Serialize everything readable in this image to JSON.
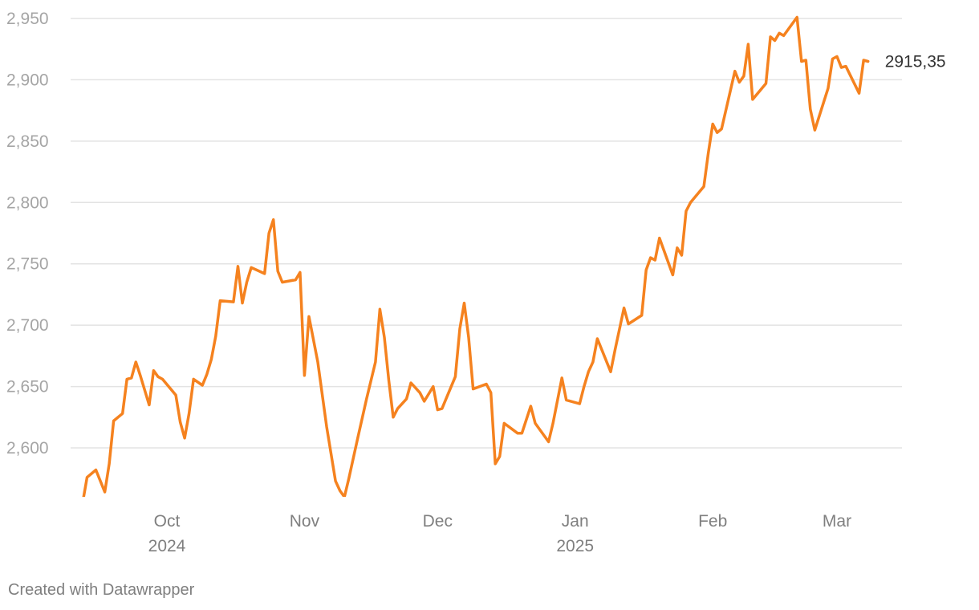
{
  "chart_data": {
    "type": "line",
    "title": "",
    "xlabel": "",
    "ylabel": "",
    "ylim": [
      2560,
      2950
    ],
    "xlim": [
      "2024-09-11",
      "2025-03-12"
    ],
    "grid": true,
    "legend": "none",
    "y_ticks": [
      {
        "value": 2600,
        "label": "2,600"
      },
      {
        "value": 2650,
        "label": "2,650"
      },
      {
        "value": 2700,
        "label": "2,700"
      },
      {
        "value": 2750,
        "label": "2,750"
      },
      {
        "value": 2800,
        "label": "2,800"
      },
      {
        "value": 2850,
        "label": "2,850"
      },
      {
        "value": 2900,
        "label": "2,900"
      },
      {
        "value": 2950,
        "label": "2,950"
      }
    ],
    "x_ticks": [
      {
        "date": "2024-10-01",
        "label": "Oct",
        "sublabel": "2024"
      },
      {
        "date": "2024-11-01",
        "label": "Nov",
        "sublabel": ""
      },
      {
        "date": "2024-12-01",
        "label": "Dec",
        "sublabel": ""
      },
      {
        "date": "2025-01-01",
        "label": "Jan",
        "sublabel": "2025"
      },
      {
        "date": "2025-02-01",
        "label": "Feb",
        "sublabel": ""
      },
      {
        "date": "2025-03-01",
        "label": "Mar",
        "sublabel": ""
      }
    ],
    "series": [
      {
        "color": "#f5821f",
        "end_label": "2915,35",
        "points": [
          [
            "2024-09-11",
            2517
          ],
          [
            "2024-09-12",
            2555
          ],
          [
            "2024-09-13",
            2576
          ],
          [
            "2024-09-15",
            2582
          ],
          [
            "2024-09-17",
            2564
          ],
          [
            "2024-09-18",
            2587
          ],
          [
            "2024-09-19",
            2622
          ],
          [
            "2024-09-21",
            2628
          ],
          [
            "2024-09-22",
            2656
          ],
          [
            "2024-09-23",
            2657
          ],
          [
            "2024-09-24",
            2670
          ],
          [
            "2024-09-25",
            2659
          ],
          [
            "2024-09-27",
            2635
          ],
          [
            "2024-09-28",
            2663
          ],
          [
            "2024-09-29",
            2658
          ],
          [
            "2024-09-30",
            2656
          ],
          [
            "2024-10-03",
            2643
          ],
          [
            "2024-10-04",
            2621
          ],
          [
            "2024-10-05",
            2608
          ],
          [
            "2024-10-06",
            2628
          ],
          [
            "2024-10-07",
            2656
          ],
          [
            "2024-10-09",
            2651
          ],
          [
            "2024-10-10",
            2660
          ],
          [
            "2024-10-11",
            2672
          ],
          [
            "2024-10-12",
            2691
          ],
          [
            "2024-10-13",
            2720
          ],
          [
            "2024-10-16",
            2719
          ],
          [
            "2024-10-17",
            2748
          ],
          [
            "2024-10-18",
            2718
          ],
          [
            "2024-10-19",
            2735
          ],
          [
            "2024-10-20",
            2747
          ],
          [
            "2024-10-23",
            2742
          ],
          [
            "2024-10-24",
            2775
          ],
          [
            "2024-10-25",
            2786
          ],
          [
            "2024-10-26",
            2744
          ],
          [
            "2024-10-27",
            2735
          ],
          [
            "2024-10-30",
            2737
          ],
          [
            "2024-10-31",
            2743
          ],
          [
            "2024-11-01",
            2659
          ],
          [
            "2024-11-02",
            2707
          ],
          [
            "2024-11-04",
            2670
          ],
          [
            "2024-11-06",
            2617
          ],
          [
            "2024-11-08",
            2573
          ],
          [
            "2024-11-09",
            2565
          ],
          [
            "2024-11-10",
            2560
          ],
          [
            "2024-11-11",
            2575
          ],
          [
            "2024-11-13",
            2608
          ],
          [
            "2024-11-15",
            2640
          ],
          [
            "2024-11-17",
            2670
          ],
          [
            "2024-11-18",
            2713
          ],
          [
            "2024-11-19",
            2690
          ],
          [
            "2024-11-20",
            2655
          ],
          [
            "2024-11-21",
            2625
          ],
          [
            "2024-11-22",
            2632
          ],
          [
            "2024-11-24",
            2640
          ],
          [
            "2024-11-25",
            2653
          ],
          [
            "2024-11-27",
            2645
          ],
          [
            "2024-11-28",
            2638
          ],
          [
            "2024-11-30",
            2650
          ],
          [
            "2024-12-01",
            2631
          ],
          [
            "2024-12-02",
            2632
          ],
          [
            "2024-12-05",
            2658
          ],
          [
            "2024-12-06",
            2697
          ],
          [
            "2024-12-07",
            2718
          ],
          [
            "2024-12-08",
            2690
          ],
          [
            "2024-12-09",
            2648
          ],
          [
            "2024-12-12",
            2652
          ],
          [
            "2024-12-13",
            2645
          ],
          [
            "2024-12-14",
            2587
          ],
          [
            "2024-12-15",
            2593
          ],
          [
            "2024-12-16",
            2620
          ],
          [
            "2024-12-19",
            2612
          ],
          [
            "2024-12-20",
            2612
          ],
          [
            "2024-12-22",
            2634
          ],
          [
            "2024-12-23",
            2620
          ],
          [
            "2024-12-26",
            2605
          ],
          [
            "2024-12-27",
            2620
          ],
          [
            "2024-12-29",
            2657
          ],
          [
            "2024-12-30",
            2639
          ],
          [
            "2025-01-02",
            2636
          ],
          [
            "2025-01-03",
            2650
          ],
          [
            "2025-01-04",
            2662
          ],
          [
            "2025-01-05",
            2670
          ],
          [
            "2025-01-06",
            2689
          ],
          [
            "2025-01-09",
            2662
          ],
          [
            "2025-01-10",
            2680
          ],
          [
            "2025-01-12",
            2714
          ],
          [
            "2025-01-13",
            2701
          ],
          [
            "2025-01-16",
            2708
          ],
          [
            "2025-01-17",
            2745
          ],
          [
            "2025-01-18",
            2755
          ],
          [
            "2025-01-19",
            2753
          ],
          [
            "2025-01-20",
            2771
          ],
          [
            "2025-01-23",
            2741
          ],
          [
            "2025-01-24",
            2763
          ],
          [
            "2025-01-25",
            2757
          ],
          [
            "2025-01-26",
            2793
          ],
          [
            "2025-01-27",
            2800
          ],
          [
            "2025-01-30",
            2813
          ],
          [
            "2025-01-31",
            2840
          ],
          [
            "2025-02-01",
            2864
          ],
          [
            "2025-02-02",
            2857
          ],
          [
            "2025-02-03",
            2860
          ],
          [
            "2025-02-06",
            2907
          ],
          [
            "2025-02-07",
            2898
          ],
          [
            "2025-02-08",
            2903
          ],
          [
            "2025-02-09",
            2929
          ],
          [
            "2025-02-10",
            2884
          ],
          [
            "2025-02-13",
            2897
          ],
          [
            "2025-02-14",
            2935
          ],
          [
            "2025-02-15",
            2932
          ],
          [
            "2025-02-16",
            2938
          ],
          [
            "2025-02-17",
            2936
          ],
          [
            "2025-02-20",
            2951
          ],
          [
            "2025-02-21",
            2915
          ],
          [
            "2025-02-22",
            2916
          ],
          [
            "2025-02-23",
            2876
          ],
          [
            "2025-02-24",
            2859
          ],
          [
            "2025-02-27",
            2893
          ],
          [
            "2025-02-28",
            2917
          ],
          [
            "2025-03-01",
            2919
          ],
          [
            "2025-03-02",
            2910
          ],
          [
            "2025-03-03",
            2911
          ],
          [
            "2025-03-06",
            2889
          ],
          [
            "2025-03-07",
            2916
          ],
          [
            "2025-03-08",
            2915
          ]
        ]
      }
    ]
  },
  "footer": {
    "credit": "Created with Datawrapper"
  }
}
